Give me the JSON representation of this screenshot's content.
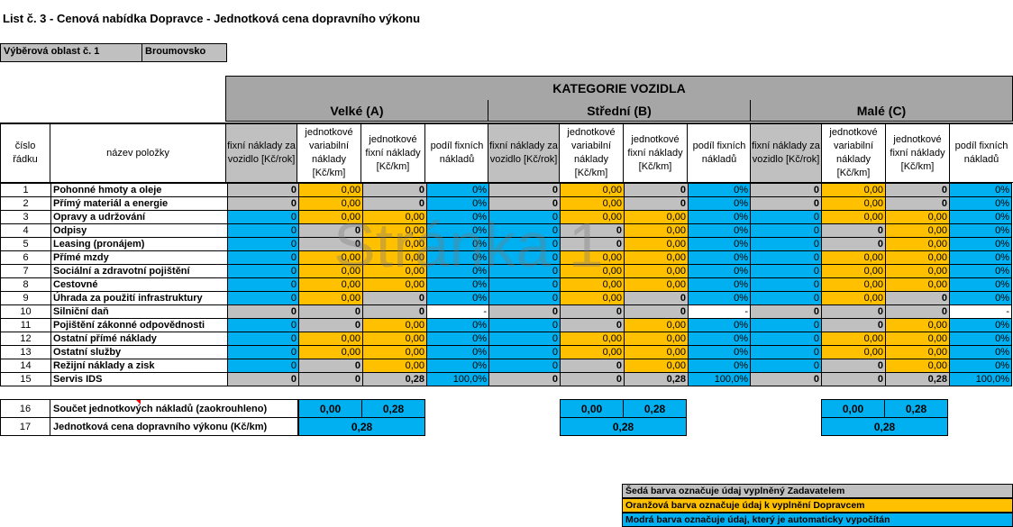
{
  "title": "List č. 3 - Cenová nabídka Dopravce - Jednotková cena dopravního výkonu",
  "region": {
    "label": "Výběrová oblast č. 1",
    "value": "Broumovsko"
  },
  "kategorie": "KATEGORIE VOZIDLA",
  "categories": [
    "Velké (A)",
    "Střední (B)",
    "Malé (C)"
  ],
  "col_row": "číslo řádku",
  "col_name": "název položky",
  "subheaders": [
    "fixní náklady za vozidlo [Kč/rok]",
    "jednotkové variabilní náklady [Kč/km]",
    "jednotkové fixní náklady [Kč/km]",
    "podíl fixních nákladů"
  ],
  "rows": [
    {
      "n": "1",
      "name": "Pohonné hmoty a oleje",
      "cells": [
        [
          "g",
          "0"
        ],
        [
          "o",
          "0,00"
        ],
        [
          "g",
          "0"
        ],
        [
          "b",
          "0%"
        ]
      ]
    },
    {
      "n": "2",
      "name": "Přímý materiál a energie",
      "cells": [
        [
          "g",
          "0"
        ],
        [
          "o",
          "0,00"
        ],
        [
          "g",
          "0"
        ],
        [
          "b",
          "0%"
        ]
      ]
    },
    {
      "n": "3",
      "name": "Opravy a udržování",
      "cells": [
        [
          "b",
          "0"
        ],
        [
          "o",
          "0,00"
        ],
        [
          "o",
          "0,00"
        ],
        [
          "b",
          "0%"
        ]
      ]
    },
    {
      "n": "4",
      "name": "Odpisy",
      "cells": [
        [
          "b",
          "0"
        ],
        [
          "g",
          "0"
        ],
        [
          "o",
          "0,00"
        ],
        [
          "b",
          "0%"
        ]
      ]
    },
    {
      "n": "5",
      "name": "Leasing (pronájem)",
      "cells": [
        [
          "b",
          "0"
        ],
        [
          "g",
          "0"
        ],
        [
          "o",
          "0,00"
        ],
        [
          "b",
          "0%"
        ]
      ]
    },
    {
      "n": "6",
      "name": "Přímé mzdy",
      "cells": [
        [
          "b",
          "0"
        ],
        [
          "o",
          "0,00"
        ],
        [
          "o",
          "0,00"
        ],
        [
          "b",
          "0%"
        ]
      ]
    },
    {
      "n": "7",
      "name": "Sociální a zdravotní pojištění",
      "cells": [
        [
          "b",
          "0"
        ],
        [
          "o",
          "0,00"
        ],
        [
          "o",
          "0,00"
        ],
        [
          "b",
          "0%"
        ]
      ]
    },
    {
      "n": "8",
      "name": "Cestovné",
      "cells": [
        [
          "b",
          "0"
        ],
        [
          "o",
          "0,00"
        ],
        [
          "o",
          "0,00"
        ],
        [
          "b",
          "0%"
        ]
      ]
    },
    {
      "n": "9",
      "name": "Úhrada za použití infrastruktury",
      "cells": [
        [
          "b",
          "0"
        ],
        [
          "o",
          "0,00"
        ],
        [
          "g",
          "0"
        ],
        [
          "b",
          "0%"
        ]
      ]
    },
    {
      "n": "10",
      "name": "Silniční daň",
      "cells": [
        [
          "g",
          "0"
        ],
        [
          "g",
          "0"
        ],
        [
          "g",
          "0"
        ],
        [
          "w",
          "-"
        ]
      ]
    },
    {
      "n": "11",
      "name": "Pojištění zákonné odpovědnosti",
      "cells": [
        [
          "b",
          "0"
        ],
        [
          "g",
          "0"
        ],
        [
          "o",
          "0,00"
        ],
        [
          "b",
          "0%"
        ]
      ]
    },
    {
      "n": "12",
      "name": "Ostatní přímé náklady",
      "cells": [
        [
          "b",
          "0"
        ],
        [
          "o",
          "0,00"
        ],
        [
          "o",
          "0,00"
        ],
        [
          "b",
          "0%"
        ]
      ]
    },
    {
      "n": "13",
      "name": "Ostatní služby",
      "cells": [
        [
          "b",
          "0"
        ],
        [
          "o",
          "0,00"
        ],
        [
          "o",
          "0,00"
        ],
        [
          "b",
          "0%"
        ]
      ]
    },
    {
      "n": "14",
      "name": "Režijní náklady a zisk",
      "cells": [
        [
          "b",
          "0"
        ],
        [
          "g",
          "0"
        ],
        [
          "o",
          "0,00"
        ],
        [
          "b",
          "0%"
        ]
      ]
    },
    {
      "n": "15",
      "name": "Servis IDS",
      "cells": [
        [
          "g",
          "0"
        ],
        [
          "g",
          "0"
        ],
        [
          "g",
          "0,28"
        ],
        [
          "b",
          "100,0%"
        ]
      ]
    }
  ],
  "row16": {
    "n": "16",
    "label": "Součet jednotkových nákladů (zaokrouhleno)",
    "values": [
      "0,00",
      "0,28"
    ]
  },
  "row17": {
    "n": "17",
    "label": "Jednotková cena dopravního výkonu (Kč/km)",
    "value": "0,28"
  },
  "watermark": "Stránka 1",
  "legend": [
    "Šedá barva označuje údaj vyplněný Zadavatelem",
    "Oranžová barva označuje údaj k vyplnění Dopravcem",
    "Modrá barva označuje údaj, který je automaticky vypočítán"
  ],
  "colors": {
    "grey": "#c0c0c0",
    "orange": "#ffc000",
    "blue": "#00b0f0",
    "darkgrey": "#a6a6a6"
  }
}
